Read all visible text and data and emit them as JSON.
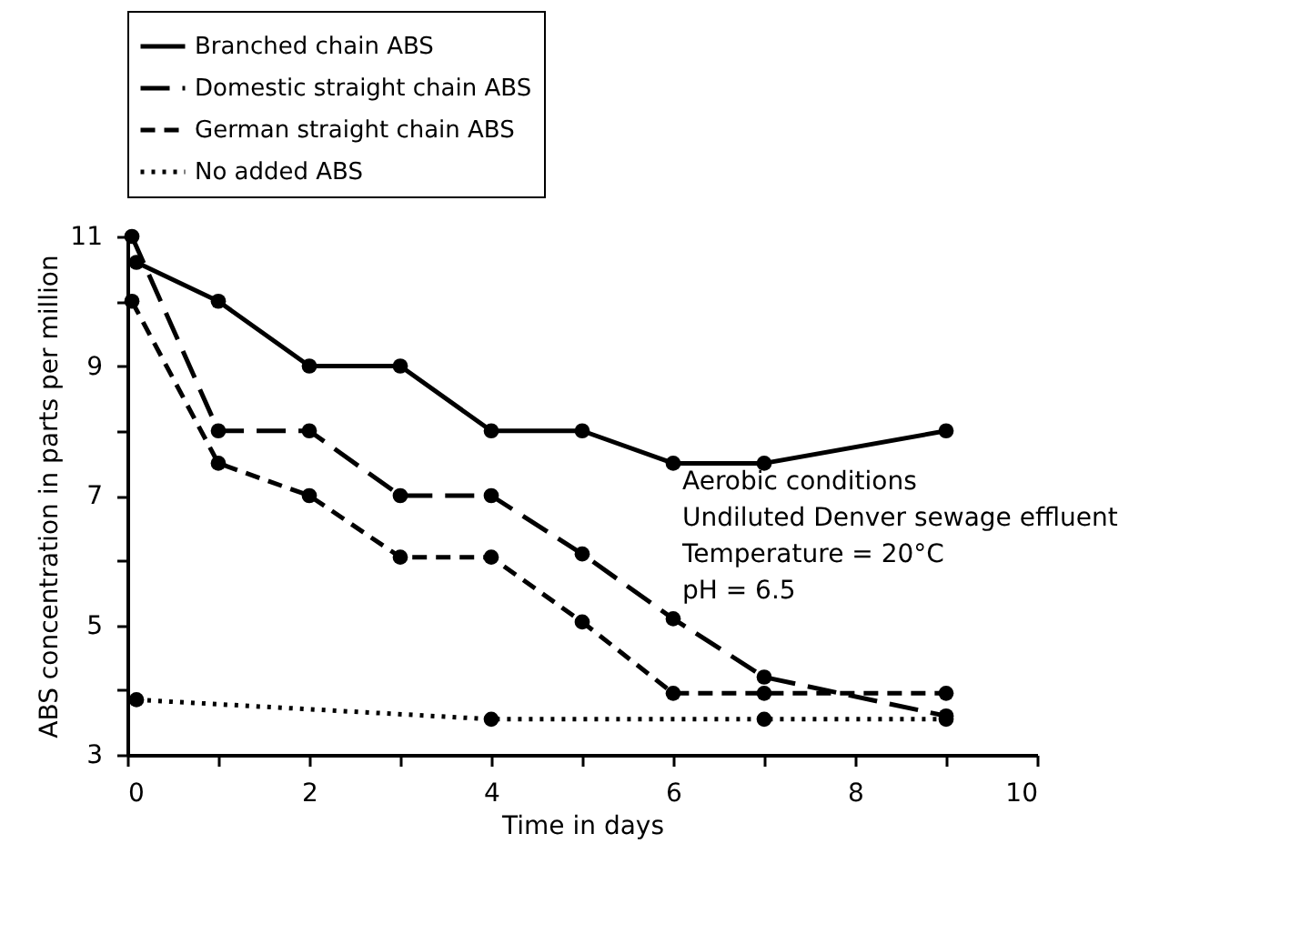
{
  "chart_data": {
    "type": "line",
    "xlabel": "Time in days",
    "ylabel": "ABS concentration in parts per million",
    "xlim": [
      0,
      10
    ],
    "ylim": [
      3,
      11
    ],
    "xticks": [
      0,
      {
        "value": 1,
        "label": null
      },
      2,
      {
        "value": 3,
        "label": null
      },
      4,
      {
        "value": 5,
        "label": null
      },
      6,
      {
        "value": 7,
        "label": null
      },
      8,
      {
        "value": 9,
        "label": null
      },
      10
    ],
    "yticks": [
      3,
      {
        "value": 4,
        "label": null
      },
      5,
      {
        "value": 6,
        "label": null
      },
      7,
      {
        "value": 8,
        "label": null
      },
      9,
      {
        "value": 10,
        "label": null
      },
      11
    ],
    "series": [
      {
        "name": "Branched chain ABS",
        "color": "#000000",
        "line_style": "solid",
        "x": [
          0.1,
          1,
          2,
          3,
          4,
          5,
          6,
          7,
          9
        ],
        "values": [
          10.6,
          10,
          9,
          9,
          8,
          8,
          7.5,
          7.5,
          8
        ]
      },
      {
        "name": "Domestic straight chain ABS",
        "color": "#000000",
        "line_style": "dashed",
        "x": [
          0.05,
          1,
          2,
          3,
          4,
          5,
          6,
          7,
          9
        ],
        "values": [
          11,
          8,
          8,
          7,
          7,
          6.1,
          5.1,
          4.2,
          3.6
        ]
      },
      {
        "name": "German straight chain ABS",
        "color": "#000000",
        "line_style": "dashed",
        "x": [
          0.05,
          1,
          2,
          3,
          4,
          5,
          6,
          7,
          9
        ],
        "values": [
          10,
          7.5,
          7,
          6.05,
          6.05,
          5.05,
          3.95,
          3.95,
          3.95
        ]
      },
      {
        "name": "No added ABS",
        "color": "#000000",
        "line_style": "dotted",
        "x": [
          0.1,
          4,
          7,
          9
        ],
        "values": [
          3.85,
          3.55,
          3.55,
          3.55
        ]
      }
    ],
    "marker": "circle",
    "grid": false,
    "legend": "top left",
    "annotations": [
      "Aerobic conditions",
      "Undiluted Denver sewage effluent",
      "Temperature = 20°C",
      "pH = 6.5"
    ]
  }
}
